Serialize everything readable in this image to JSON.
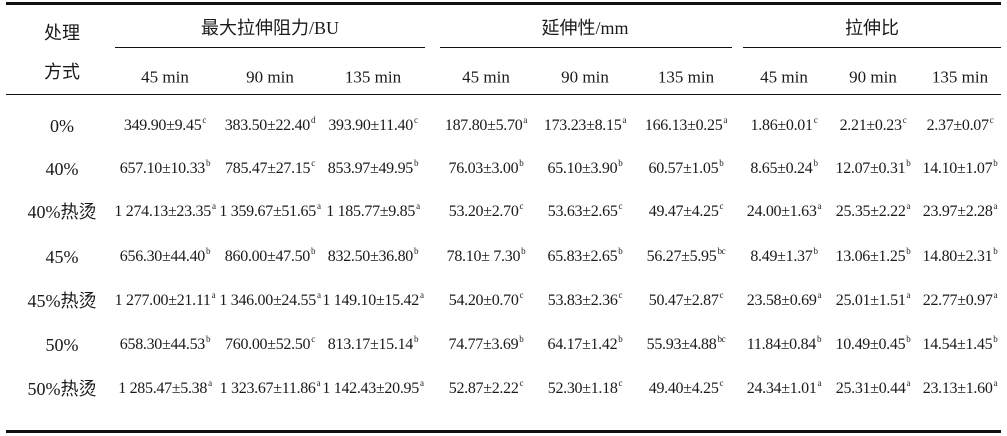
{
  "table": {
    "treatment_header_line1": "处理",
    "treatment_header_line2": "方式",
    "groups": [
      "最大拉伸阻力/BU",
      "延伸性/mm",
      "拉伸比"
    ],
    "subheaders": [
      "45 min",
      "90 min",
      "135 min",
      "45 min",
      "90 min",
      "135 min",
      "45 min",
      "90 min",
      "135 min"
    ],
    "rows": [
      {
        "label": "0%",
        "cells": [
          {
            "v": "349.90±9.45",
            "s": "c"
          },
          {
            "v": "383.50±22.40",
            "s": "d"
          },
          {
            "v": "393.90±11.40",
            "s": "c"
          },
          {
            "v": "187.80±5.70",
            "s": "a"
          },
          {
            "v": "173.23±8.15",
            "s": "a"
          },
          {
            "v": "166.13±0.25",
            "s": "a"
          },
          {
            "v": "1.86±0.01",
            "s": "c"
          },
          {
            "v": "2.21±0.23",
            "s": "c"
          },
          {
            "v": "2.37±0.07",
            "s": "c"
          }
        ]
      },
      {
        "label": "40%",
        "cells": [
          {
            "v": "657.10±10.33",
            "s": "b"
          },
          {
            "v": "785.47±27.15",
            "s": "c"
          },
          {
            "v": "853.97±49.95",
            "s": "b"
          },
          {
            "v": "76.03±3.00",
            "s": "b"
          },
          {
            "v": "65.10±3.90",
            "s": "b"
          },
          {
            "v": "60.57±1.05",
            "s": "b"
          },
          {
            "v": "8.65±0.24",
            "s": "b"
          },
          {
            "v": "12.07±0.31",
            "s": "b"
          },
          {
            "v": "14.10±1.07",
            "s": "b"
          }
        ]
      },
      {
        "label": "40%热烫",
        "cells": [
          {
            "v": "1 274.13±23.35",
            "s": "a"
          },
          {
            "v": "1 359.67±51.65",
            "s": "a"
          },
          {
            "v": "1 185.77±9.85",
            "s": "a"
          },
          {
            "v": "53.20±2.70",
            "s": "c"
          },
          {
            "v": "53.63±2.65",
            "s": "c"
          },
          {
            "v": "49.47±4.25",
            "s": "c"
          },
          {
            "v": "24.00±1.63",
            "s": "a"
          },
          {
            "v": "25.35±2.22",
            "s": "a"
          },
          {
            "v": "23.97±2.28",
            "s": "a"
          }
        ]
      },
      {
        "label": "45%",
        "cells": [
          {
            "v": "656.30±44.40",
            "s": "b"
          },
          {
            "v": "860.00±47.50",
            "s": "b"
          },
          {
            "v": "832.50±36.80",
            "s": "b"
          },
          {
            "v": "78.10± 7.30",
            "s": "b"
          },
          {
            "v": "65.83±2.65",
            "s": "b"
          },
          {
            "v": "56.27±5.95",
            "s": "bc"
          },
          {
            "v": "8.49±1.37",
            "s": "b"
          },
          {
            "v": "13.06±1.25",
            "s": "b"
          },
          {
            "v": "14.80±2.31",
            "s": "b"
          }
        ]
      },
      {
        "label": "45%热烫",
        "cells": [
          {
            "v": "1 277.00±21.11",
            "s": "a"
          },
          {
            "v": "1 346.00±24.55",
            "s": "a"
          },
          {
            "v": "1 149.10±15.42",
            "s": "a"
          },
          {
            "v": "54.20±0.70",
            "s": "c"
          },
          {
            "v": "53.83±2.36",
            "s": "c"
          },
          {
            "v": "50.47±2.87",
            "s": "c"
          },
          {
            "v": "23.58±0.69",
            "s": "a"
          },
          {
            "v": "25.01±1.51",
            "s": "a"
          },
          {
            "v": "22.77±0.97",
            "s": "a"
          }
        ]
      },
      {
        "label": "50%",
        "cells": [
          {
            "v": "658.30±44.53",
            "s": "b"
          },
          {
            "v": "760.00±52.50",
            "s": "c"
          },
          {
            "v": "813.17±15.14",
            "s": "b"
          },
          {
            "v": "74.77±3.69",
            "s": "b"
          },
          {
            "v": "64.17±1.42",
            "s": "b"
          },
          {
            "v": "55.93±4.88",
            "s": "bc"
          },
          {
            "v": "11.84±0.84",
            "s": "b"
          },
          {
            "v": "10.49±0.45",
            "s": "b"
          },
          {
            "v": "14.54±1.45",
            "s": "b"
          }
        ]
      },
      {
        "label": "50%热烫",
        "cells": [
          {
            "v": "1 285.47±5.38",
            "s": "a"
          },
          {
            "v": "1 323.67±11.86",
            "s": "a"
          },
          {
            "v": "1 142.43±20.95",
            "s": "a"
          },
          {
            "v": "52.87±2.22",
            "s": "c"
          },
          {
            "v": "52.30±1.18",
            "s": "c"
          },
          {
            "v": "49.40±4.25",
            "s": "c"
          },
          {
            "v": "24.34±1.01",
            "s": "a"
          },
          {
            "v": "25.31±0.44",
            "s": "a"
          },
          {
            "v": "23.13±1.60",
            "s": "a"
          }
        ]
      }
    ]
  }
}
